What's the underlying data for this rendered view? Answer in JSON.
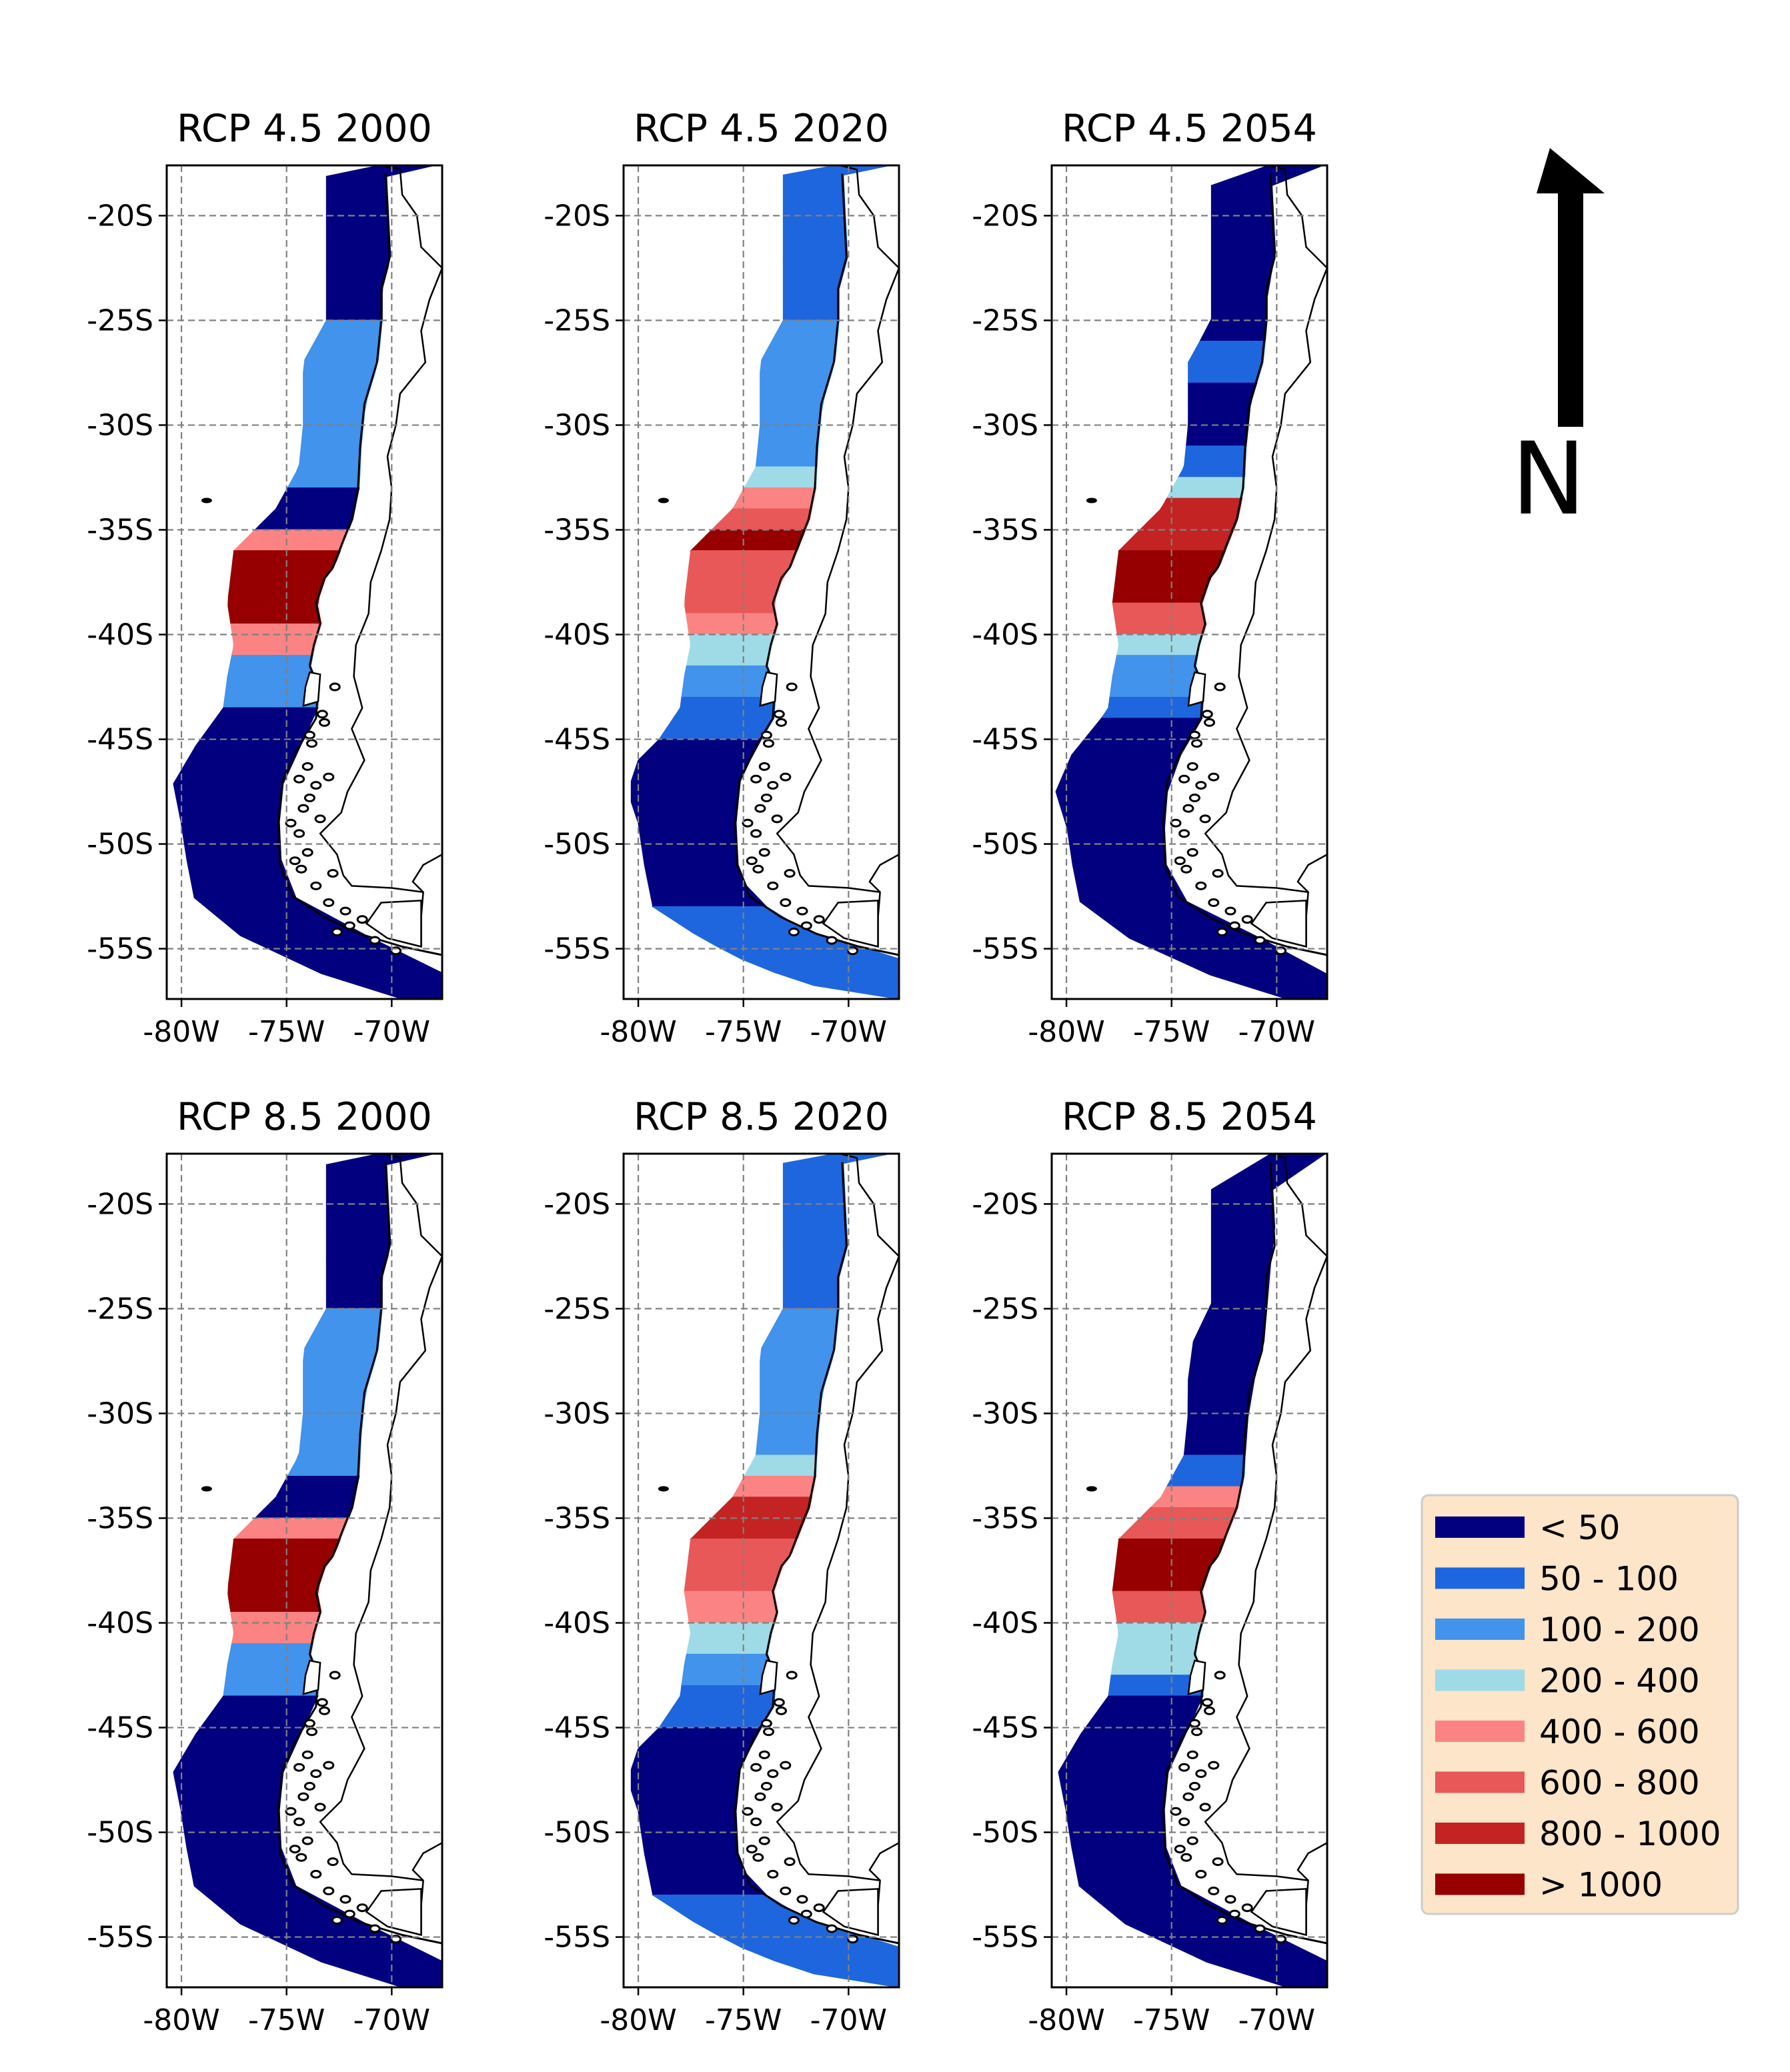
{
  "panels": [
    {
      "title": "RCP 4.5 2000",
      "scenario": "RCP 4.5",
      "year": "2000",
      "bands": [
        [
          -17.5,
          -22.5,
          0
        ],
        [
          -22.5,
          -25,
          0
        ],
        [
          -25,
          -30,
          2
        ],
        [
          -30,
          -33,
          2
        ],
        [
          -33,
          -34,
          0
        ],
        [
          -34,
          -35,
          0
        ],
        [
          -35,
          -36,
          4
        ],
        [
          -36,
          -39.5,
          7
        ],
        [
          -39.5,
          -41,
          4
        ],
        [
          -41,
          -42,
          2
        ],
        [
          -42,
          -43.5,
          2
        ],
        [
          -43.5,
          -58,
          0
        ]
      ]
    },
    {
      "title": "RCP 4.5 2020",
      "scenario": "RCP 4.5",
      "year": "2020",
      "bands": [
        [
          -17.5,
          -22,
          1
        ],
        [
          -22,
          -25,
          1
        ],
        [
          -25,
          -30,
          2
        ],
        [
          -30,
          -32,
          2
        ],
        [
          -32,
          -33,
          3
        ],
        [
          -33,
          -34,
          4
        ],
        [
          -34,
          -35,
          5
        ],
        [
          -35,
          -36,
          7
        ],
        [
          -36,
          -39,
          5
        ],
        [
          -39,
          -40,
          4
        ],
        [
          -40,
          -41.5,
          3
        ],
        [
          -41.5,
          -43,
          2
        ],
        [
          -43,
          -45,
          1
        ],
        [
          -45,
          -53,
          0
        ],
        [
          -53,
          -58,
          1
        ]
      ]
    },
    {
      "title": "RCP 4.5 2054",
      "scenario": "RCP 4.5",
      "year": "2054",
      "bands": [
        [
          -17.5,
          -26,
          0
        ],
        [
          -26,
          -28,
          1
        ],
        [
          -28,
          -31,
          0
        ],
        [
          -31,
          -32.5,
          1
        ],
        [
          -32.5,
          -33.5,
          3
        ],
        [
          -33.5,
          -35,
          6
        ],
        [
          -35,
          -36,
          6
        ],
        [
          -36,
          -38.5,
          7
        ],
        [
          -38.5,
          -39,
          5
        ],
        [
          -39,
          -40,
          5
        ],
        [
          -40,
          -41,
          3
        ],
        [
          -41,
          -43,
          2
        ],
        [
          -43,
          -44,
          1
        ],
        [
          -44,
          -58,
          0
        ]
      ]
    },
    {
      "title": "RCP 8.5 2000",
      "scenario": "RCP 8.5",
      "year": "2000",
      "bands": [
        [
          -17.5,
          -22.5,
          0
        ],
        [
          -22.5,
          -25,
          0
        ],
        [
          -25,
          -30,
          2
        ],
        [
          -30,
          -33,
          2
        ],
        [
          -33,
          -34,
          0
        ],
        [
          -34,
          -35,
          0
        ],
        [
          -35,
          -36,
          4
        ],
        [
          -36,
          -39.5,
          7
        ],
        [
          -39.5,
          -41,
          4
        ],
        [
          -41,
          -42,
          2
        ],
        [
          -42,
          -43.5,
          2
        ],
        [
          -43.5,
          -58,
          0
        ]
      ]
    },
    {
      "title": "RCP 8.5 2020",
      "scenario": "RCP 8.5",
      "year": "2020",
      "bands": [
        [
          -17.5,
          -22,
          1
        ],
        [
          -22,
          -25,
          1
        ],
        [
          -25,
          -30,
          2
        ],
        [
          -30,
          -32,
          2
        ],
        [
          -32,
          -33,
          3
        ],
        [
          -33,
          -34,
          4
        ],
        [
          -34,
          -36,
          6
        ],
        [
          -36,
          -38.5,
          5
        ],
        [
          -38.5,
          -40,
          4
        ],
        [
          -40,
          -41.5,
          3
        ],
        [
          -41.5,
          -43,
          2
        ],
        [
          -43,
          -45,
          1
        ],
        [
          -45,
          -53,
          0
        ],
        [
          -53,
          -58,
          1
        ]
      ]
    },
    {
      "title": "RCP 8.5 2054",
      "scenario": "RCP 8.5",
      "year": "2054",
      "bands": [
        [
          -17.5,
          -32,
          0
        ],
        [
          -32,
          -33.5,
          1
        ],
        [
          -33.5,
          -34.5,
          4
        ],
        [
          -34.5,
          -35,
          5
        ],
        [
          -35,
          -36,
          5
        ],
        [
          -36,
          -38.5,
          7
        ],
        [
          -38.5,
          -40,
          5
        ],
        [
          -40,
          -42.5,
          3
        ],
        [
          -42.5,
          -43.5,
          1
        ],
        [
          -43.5,
          -58,
          0
        ]
      ]
    }
  ],
  "axes": {
    "lat_ticks": [
      -20,
      -25,
      -30,
      -35,
      -40,
      -45,
      -50,
      -55
    ],
    "lat_labels": [
      "-20S",
      "-25S",
      "-30S",
      "-35S",
      "-40S",
      "-45S",
      "-50S",
      "-55S"
    ],
    "lon_ticks": [
      -80,
      -75,
      -70
    ],
    "lon_labels": [
      "-80W",
      "-75W",
      "-70W"
    ],
    "lon_range": [
      -80.7,
      -67.6
    ],
    "lat_range": [
      -57.4,
      -17.6
    ],
    "grid": true,
    "grid_style": "dashed"
  },
  "legend": {
    "placement": "lower-right",
    "background": "#fce5c8",
    "items": [
      {
        "label": "< 50",
        "color": "#02007f"
      },
      {
        "label": "50 - 100",
        "color": "#1e66dd"
      },
      {
        "label": "100 - 200",
        "color": "#4193ec"
      },
      {
        "label": "200 - 400",
        "color": "#9edbe6"
      },
      {
        "label": "400 - 600",
        "color": "#fb8383"
      },
      {
        "label": "600 - 800",
        "color": "#e85858"
      },
      {
        "label": "800 - 1000",
        "color": "#c42323"
      },
      {
        "label": "> 1000",
        "color": "#960000"
      }
    ]
  },
  "north_arrow": {
    "label": "N",
    "icon": "north-arrow-icon"
  },
  "map": {
    "coast": [
      [
        -70.3,
        -18
      ],
      [
        -70.2,
        -20
      ],
      [
        -70.1,
        -22
      ],
      [
        -70.5,
        -23.5
      ],
      [
        -70.5,
        -25
      ],
      [
        -70.7,
        -27
      ],
      [
        -71.3,
        -29
      ],
      [
        -71.5,
        -31
      ],
      [
        -71.6,
        -33
      ],
      [
        -71.9,
        -34.5
      ],
      [
        -72.3,
        -35.5
      ],
      [
        -72.8,
        -36.8
      ],
      [
        -73.2,
        -37.3
      ],
      [
        -73.6,
        -38.5
      ],
      [
        -73.4,
        -39.5
      ],
      [
        -73.7,
        -40.5
      ],
      [
        -73.9,
        -41.5
      ],
      [
        -73.5,
        -42.5
      ],
      [
        -73.6,
        -44
      ],
      [
        -74.5,
        -45.5
      ],
      [
        -75.2,
        -47
      ],
      [
        -75.4,
        -49
      ],
      [
        -75.3,
        -51
      ],
      [
        -74.7,
        -52.5
      ],
      [
        -73.2,
        -53.5
      ],
      [
        -71.5,
        -54.3
      ],
      [
        -69.5,
        -54.9
      ],
      [
        -67.6,
        -55.3
      ]
    ],
    "offshore": [
      [
        -70.1,
        -17.5
      ],
      [
        -73.1,
        -17.5
      ],
      [
        -73.1,
        -22
      ],
      [
        -73.1,
        -25
      ],
      [
        -74.2,
        -27
      ],
      [
        -74.2,
        -30
      ],
      [
        -74.4,
        -32
      ],
      [
        -75.5,
        -34
      ],
      [
        -77.5,
        -36
      ],
      [
        -77.8,
        -38.5
      ],
      [
        -77.5,
        -40.5
      ],
      [
        -77.8,
        -42
      ],
      [
        -78,
        -43.5
      ],
      [
        -79,
        -45
      ],
      [
        -80,
        -46
      ],
      [
        -80.5,
        -47.5
      ],
      [
        -80,
        -49
      ],
      [
        -79.7,
        -51
      ],
      [
        -79.3,
        -53
      ],
      [
        -77,
        -54.5
      ],
      [
        -74.5,
        -55.8
      ],
      [
        -71.5,
        -56.8
      ],
      [
        -67.6,
        -57.4
      ]
    ],
    "land_outline": [
      [
        -70.4,
        -17.6
      ],
      [
        -69.6,
        -17.8
      ],
      [
        -69.5,
        -19
      ],
      [
        -68.8,
        -20
      ],
      [
        -68.6,
        -21.5
      ],
      [
        -67.6,
        -22.5
      ],
      [
        -68.2,
        -24
      ],
      [
        -68.6,
        -25.5
      ],
      [
        -68.4,
        -27
      ],
      [
        -69.6,
        -28.5
      ],
      [
        -69.8,
        -30
      ],
      [
        -70.2,
        -31.5
      ],
      [
        -70,
        -33
      ],
      [
        -70.1,
        -34.5
      ],
      [
        -70.5,
        -36
      ],
      [
        -71,
        -37.5
      ],
      [
        -71.1,
        -39
      ],
      [
        -71.7,
        -40.5
      ],
      [
        -71.8,
        -42
      ],
      [
        -71.4,
        -43.5
      ],
      [
        -71.9,
        -44.5
      ],
      [
        -71.3,
        -46
      ],
      [
        -72.1,
        -47.5
      ],
      [
        -72.4,
        -48.5
      ],
      [
        -73.4,
        -49.5
      ],
      [
        -72.6,
        -50.5
      ],
      [
        -72.3,
        -51.5
      ],
      [
        -71.9,
        -52
      ],
      [
        -70,
        -52.1
      ],
      [
        -68.5,
        -52.3
      ],
      [
        -68.6,
        -53.5
      ],
      [
        -68.6,
        -54.9
      ]
    ],
    "east_coast": [
      [
        -67.6,
        -50.5
      ],
      [
        -68.5,
        -51
      ],
      [
        -69,
        -51.8
      ],
      [
        -68.5,
        -52.3
      ]
    ],
    "fuego": [
      [
        -70.5,
        -52.8
      ],
      [
        -68.6,
        -52.7
      ],
      [
        -68.6,
        -54.9
      ],
      [
        -70.2,
        -54.5
      ],
      [
        -71.2,
        -53.8
      ]
    ],
    "islands": [
      [
        -73.2,
        -44.2
      ],
      [
        -73.8,
        -45.2
      ],
      [
        -74,
        -46.3
      ],
      [
        -73.6,
        -47.2
      ],
      [
        -74.2,
        -48.3
      ],
      [
        -74.4,
        -49.5
      ],
      [
        -74,
        -50.4
      ],
      [
        -74.3,
        -51.2
      ],
      [
        -73.6,
        -52
      ],
      [
        -73,
        -52.8
      ],
      [
        -72.2,
        -53.2
      ],
      [
        -71.4,
        -53.6
      ],
      [
        -72.8,
        -51.4
      ],
      [
        -73.4,
        -48.8
      ],
      [
        -73.9,
        -47.8
      ],
      [
        -74.6,
        -50.8
      ],
      [
        -73.3,
        -43.8
      ],
      [
        -72.7,
        -42.5
      ],
      [
        -73,
        -46.8
      ],
      [
        -74.8,
        -49
      ],
      [
        -72,
        -53.9
      ],
      [
        -70.8,
        -54.6
      ],
      [
        -69.8,
        -55.1
      ],
      [
        -72.6,
        -54.2
      ],
      [
        -73.9,
        -44.8
      ],
      [
        -74.4,
        -46.9
      ]
    ],
    "chiloe": [
      [
        -73.9,
        -41.8
      ],
      [
        -73.4,
        -41.9
      ],
      [
        -73.5,
        -43.2
      ],
      [
        -74.2,
        -43.4
      ],
      [
        -74.1,
        -42.5
      ]
    ]
  }
}
